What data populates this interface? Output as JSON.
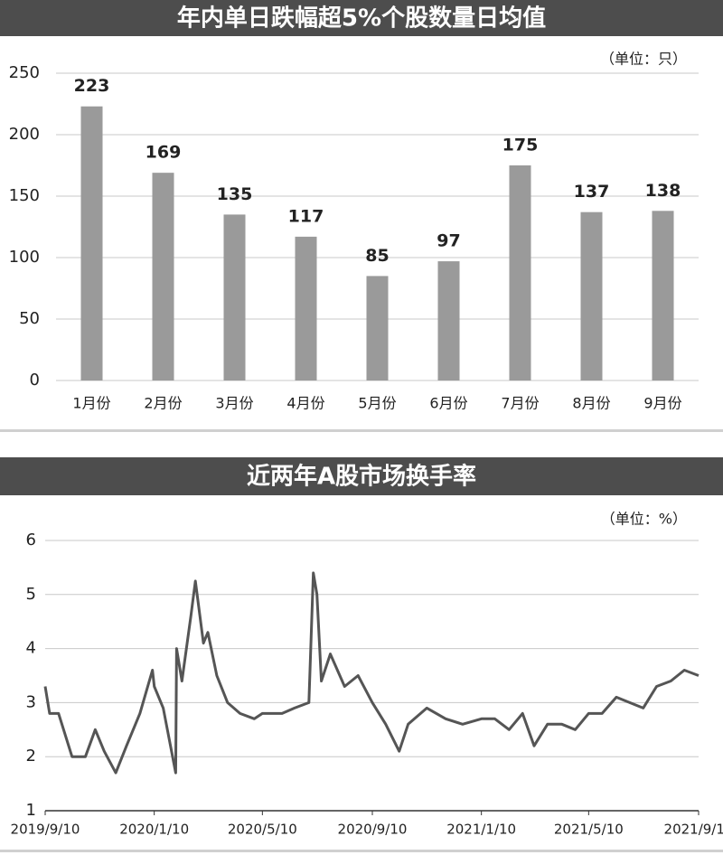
{
  "chart_data": [
    {
      "type": "bar",
      "title": "年内单日跌幅超5%个股数量日均值",
      "unit": "（单位：只）",
      "categories": [
        "1月份",
        "2月份",
        "3月份",
        "4月份",
        "5月份",
        "6月份",
        "7月份",
        "8月份",
        "9月份"
      ],
      "values": [
        223,
        169,
        135,
        117,
        85,
        97,
        175,
        137,
        138
      ],
      "color": "#9a9a9a",
      "ylim": [
        0,
        250
      ],
      "yticks": [
        0,
        50,
        100,
        150,
        200,
        250
      ],
      "grid": true
    },
    {
      "type": "line",
      "title": "近两年A股市场换手率",
      "unit": "（单位：%）",
      "x": [
        "2019/9/10",
        "2019/9/15",
        "2019/9/25",
        "2019/10/10",
        "2019/10/25",
        "2019/11/5",
        "2019/11/15",
        "2019/11/28",
        "2019/12/10",
        "2019/12/25",
        "2020/1/8",
        "2020/1/10",
        "2020/1/20",
        "2020/2/3",
        "2020/2/4",
        "2020/2/10",
        "2020/2/20",
        "2020/2/25",
        "2020/3/5",
        "2020/3/10",
        "2020/3/20",
        "2020/4/1",
        "2020/4/15",
        "2020/5/1",
        "2020/5/10",
        "2020/6/1",
        "2020/6/15",
        "2020/7/1",
        "2020/7/6",
        "2020/7/10",
        "2020/7/15",
        "2020/7/25",
        "2020/8/10",
        "2020/8/25",
        "2020/9/10",
        "2020/9/25",
        "2020/10/10",
        "2020/10/20",
        "2020/11/10",
        "2020/12/1",
        "2020/12/20",
        "2021/1/10",
        "2021/1/25",
        "2021/2/10",
        "2021/2/25",
        "2021/3/10",
        "2021/3/25",
        "2021/4/10",
        "2021/4/25",
        "2021/5/10",
        "2021/5/25",
        "2021/6/10",
        "2021/6/25",
        "2021/7/10",
        "2021/7/25",
        "2021/8/10",
        "2021/8/25",
        "2021/9/10"
      ],
      "series": [
        {
          "color": "#555555",
          "values": [
            3.3,
            2.8,
            2.8,
            2.0,
            2.0,
            2.5,
            2.1,
            1.7,
            2.2,
            2.8,
            3.6,
            3.3,
            2.9,
            1.7,
            4.0,
            3.4,
            4.6,
            5.25,
            4.1,
            4.3,
            3.5,
            3.0,
            2.8,
            2.7,
            2.8,
            2.8,
            2.9,
            3.0,
            5.4,
            5.0,
            3.4,
            3.9,
            3.3,
            3.5,
            3.0,
            2.6,
            2.1,
            2.6,
            2.9,
            2.7,
            2.6,
            2.7,
            2.7,
            2.5,
            2.8,
            2.2,
            2.6,
            2.6,
            2.5,
            2.8,
            2.8,
            3.1,
            3.0,
            2.9,
            3.3,
            3.4,
            3.6,
            3.5
          ]
        }
      ],
      "xlim": [
        "2019/9/10",
        "2021/9/10"
      ],
      "xticks": [
        "2019/9/10",
        "2020/1/10",
        "2020/5/10",
        "2020/9/10",
        "2021/1/10",
        "2021/5/10",
        "2021/9/10"
      ],
      "ylim": [
        1,
        6
      ],
      "yticks": [
        1,
        2,
        3,
        4,
        5,
        6
      ],
      "grid": true
    }
  ]
}
